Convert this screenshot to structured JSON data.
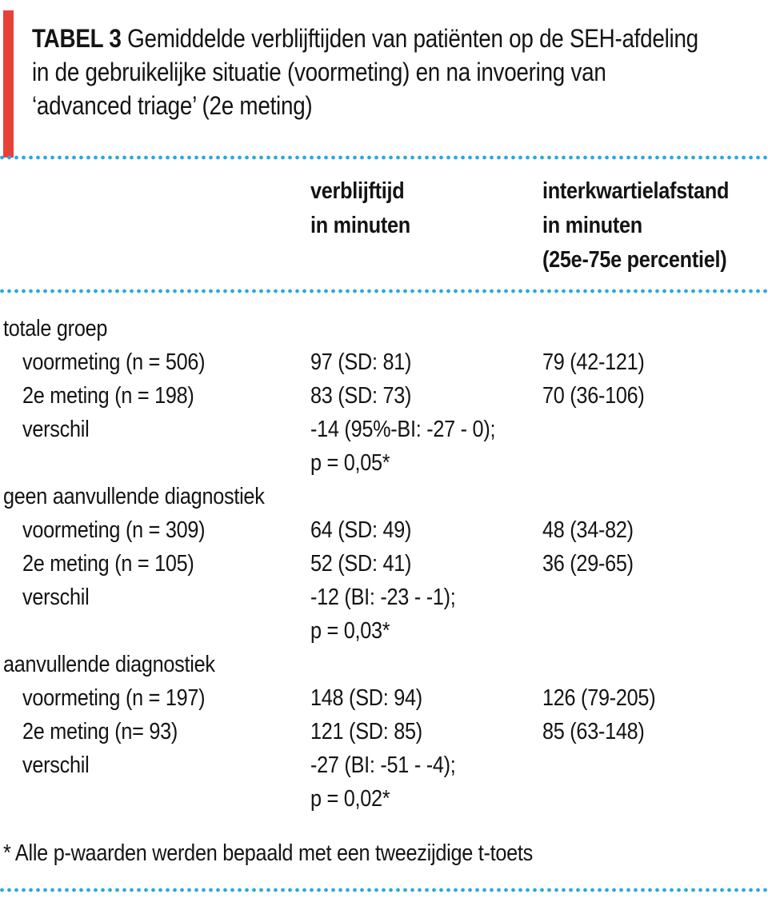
{
  "colors": {
    "accent_bar_red": "#e8413a",
    "dotted_line_blue": "#29a8e0",
    "text": "#141414"
  },
  "title": {
    "label": "TABEL 3",
    "line1": "Gemiddelde verblijftijden van patiënten op de SEH-afdeling",
    "line2": "in de gebruikelijke situatie (voormeting) en na invoering van",
    "line3": "‘advanced triage’ (2e meting)"
  },
  "columns": {
    "verblijftijd": [
      "verblijftijd",
      "in minuten"
    ],
    "interkwartiel": [
      "interkwartielafstand",
      "in minuten",
      "(25e-75e percentiel)"
    ]
  },
  "rows": [
    {
      "c1": "totale groep",
      "c2": "",
      "c3": ""
    },
    {
      "c1": "voormeting (n = 506)",
      "c2": "97 (SD: 81)",
      "c3": "79 (42-121)"
    },
    {
      "c1": "2e meting (n = 198)",
      "c2": "83 (SD: 73)",
      "c3": "70 (36-106)"
    },
    {
      "c1": "verschil",
      "c2": "-14 (95%-BI: -27 - 0);",
      "c3": ""
    },
    {
      "c1": "",
      "c2": "p = 0,05*",
      "c3": ""
    },
    {
      "c1": "geen aanvullende diagnostiek",
      "c2": "",
      "c3": ""
    },
    {
      "c1": "voormeting (n = 309)",
      "c2": "64 (SD: 49)",
      "c3": "48 (34-82)"
    },
    {
      "c1": "2e meting (n = 105)",
      "c2": "52 (SD: 41)",
      "c3": "36 (29-65)"
    },
    {
      "c1": "verschil",
      "c2": "-12 (BI: -23 - -1);",
      "c3": ""
    },
    {
      "c1": "",
      "c2": "p = 0,03*",
      "c3": ""
    },
    {
      "c1": "aanvullende diagnostiek",
      "c2": "",
      "c3": ""
    },
    {
      "c1": "voormeting (n = 197)",
      "c2": "148 (SD: 94)",
      "c3": "126 (79-205)"
    },
    {
      "c1": "2e meting (n= 93)",
      "c2": "121 (SD: 85)",
      "c3": "85 (63-148)"
    },
    {
      "c1": "verschil",
      "c2": "-27 (BI: -51 - -4);",
      "c3": ""
    },
    {
      "c1": "",
      "c2": "p = 0,02*",
      "c3": ""
    }
  ],
  "footnote": "* Alle p-waarden werden bepaald met een tweezijdige t-toets"
}
